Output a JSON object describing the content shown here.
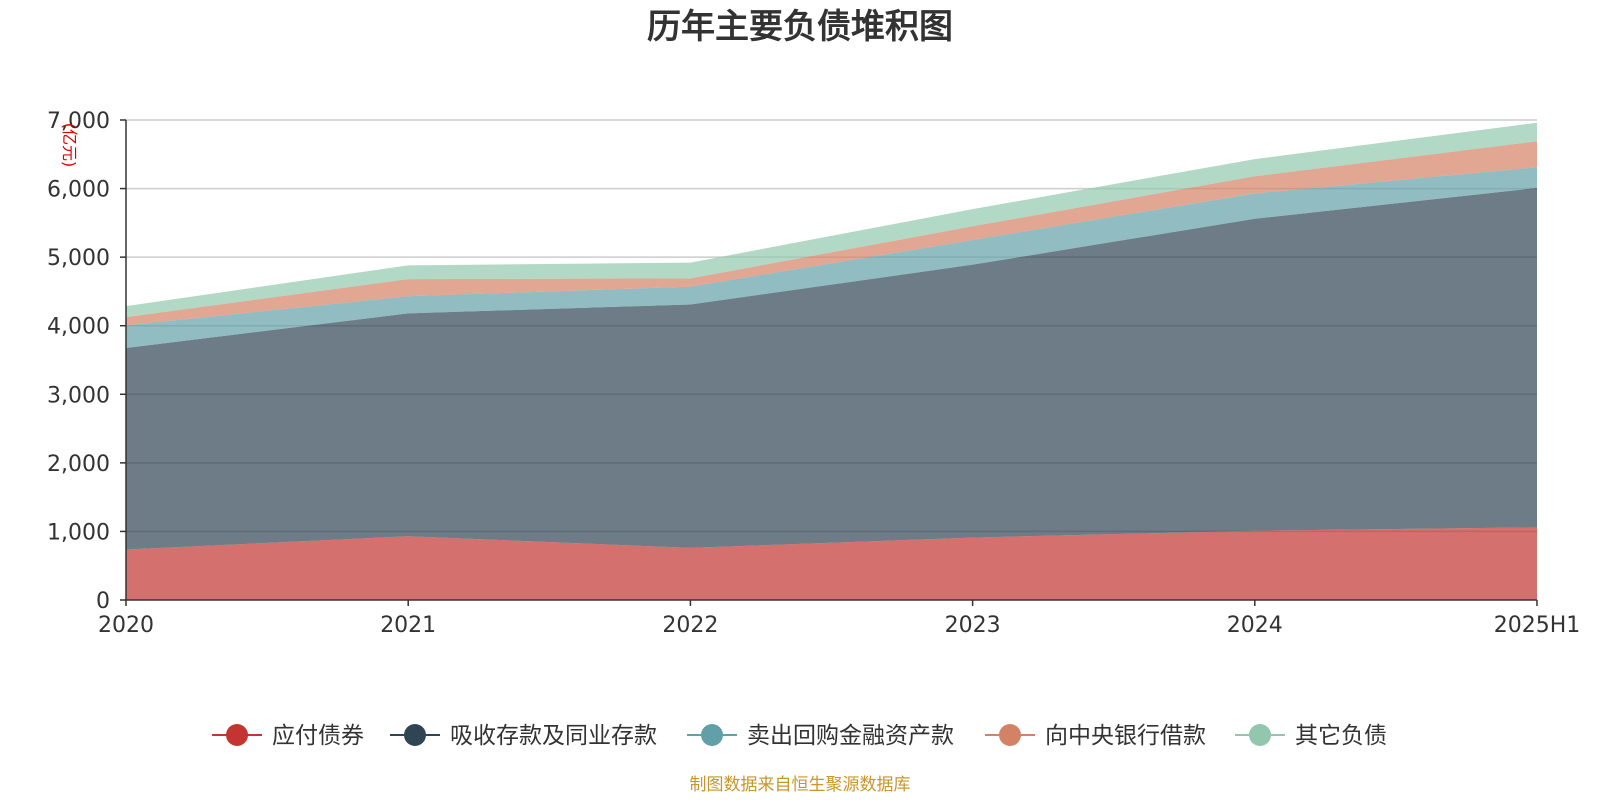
{
  "chart_data": {
    "type": "area",
    "stacked": true,
    "title": "历年主要负债堆积图",
    "unit_label": "(亿元)",
    "categories": [
      "2020",
      "2021",
      "2022",
      "2023",
      "2024",
      "2025H1"
    ],
    "ylim": [
      0,
      7000
    ],
    "yticks": [
      0,
      1000,
      2000,
      3000,
      4000,
      5000,
      6000,
      7000
    ],
    "ytick_labels": [
      "0",
      "1,000",
      "2,000",
      "3,000",
      "4,000",
      "5,000",
      "6,000",
      "7,000"
    ],
    "grid": true,
    "legend_position": "bottom",
    "series": [
      {
        "name": "应付债券",
        "color": "#c23531",
        "values": [
          735,
          930,
          760,
          910,
          1010,
          1060
        ]
      },
      {
        "name": "吸收存款及同业存款",
        "color": "#2f4554",
        "values": [
          2940,
          3250,
          3550,
          3980,
          4550,
          4950
        ]
      },
      {
        "name": "卖出回购金融资产款",
        "color": "#61a0a8",
        "values": [
          330,
          250,
          260,
          360,
          370,
          300
        ]
      },
      {
        "name": "向中央银行借款",
        "color": "#d48265",
        "values": [
          120,
          250,
          120,
          200,
          250,
          380
        ]
      },
      {
        "name": "其它负债",
        "color": "#91c7ae",
        "values": [
          160,
          200,
          230,
          250,
          250,
          270
        ]
      }
    ]
  },
  "source_note": "制图数据来自恒生聚源数据库"
}
